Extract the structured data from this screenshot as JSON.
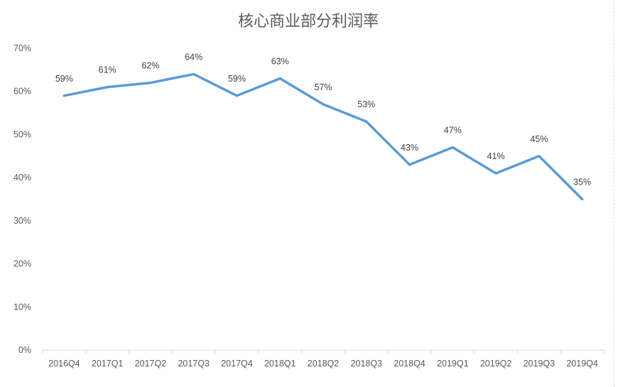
{
  "chart_data": {
    "type": "line",
    "title": "核心商业部分利润率",
    "xlabel": "",
    "ylabel": "",
    "categories": [
      "2016Q4",
      "2017Q1",
      "2017Q2",
      "2017Q3",
      "2017Q4",
      "2018Q1",
      "2018Q2",
      "2018Q3",
      "2018Q4",
      "2019Q1",
      "2019Q2",
      "2019Q3",
      "2019Q4"
    ],
    "series": [
      {
        "values": [
          59,
          61,
          62,
          64,
          59,
          63,
          57,
          53,
          43,
          47,
          41,
          45,
          35
        ],
        "data_labels": [
          "59%",
          "61%",
          "62%",
          "64%",
          "59%",
          "63%",
          "57%",
          "53%",
          "43%",
          "47%",
          "41%",
          "45%",
          "35%"
        ],
        "color": "#5b9bd5"
      }
    ],
    "ylim": [
      0,
      70
    ],
    "y_ticks": [
      0,
      10,
      20,
      30,
      40,
      50,
      60,
      70
    ],
    "y_tick_labels": [
      "0%",
      "10%",
      "20%",
      "30%",
      "40%",
      "50%",
      "60%",
      "70%"
    ],
    "grid": false,
    "legend": "none",
    "axis_color": "#d9d9d9",
    "text_color": "#595959"
  }
}
